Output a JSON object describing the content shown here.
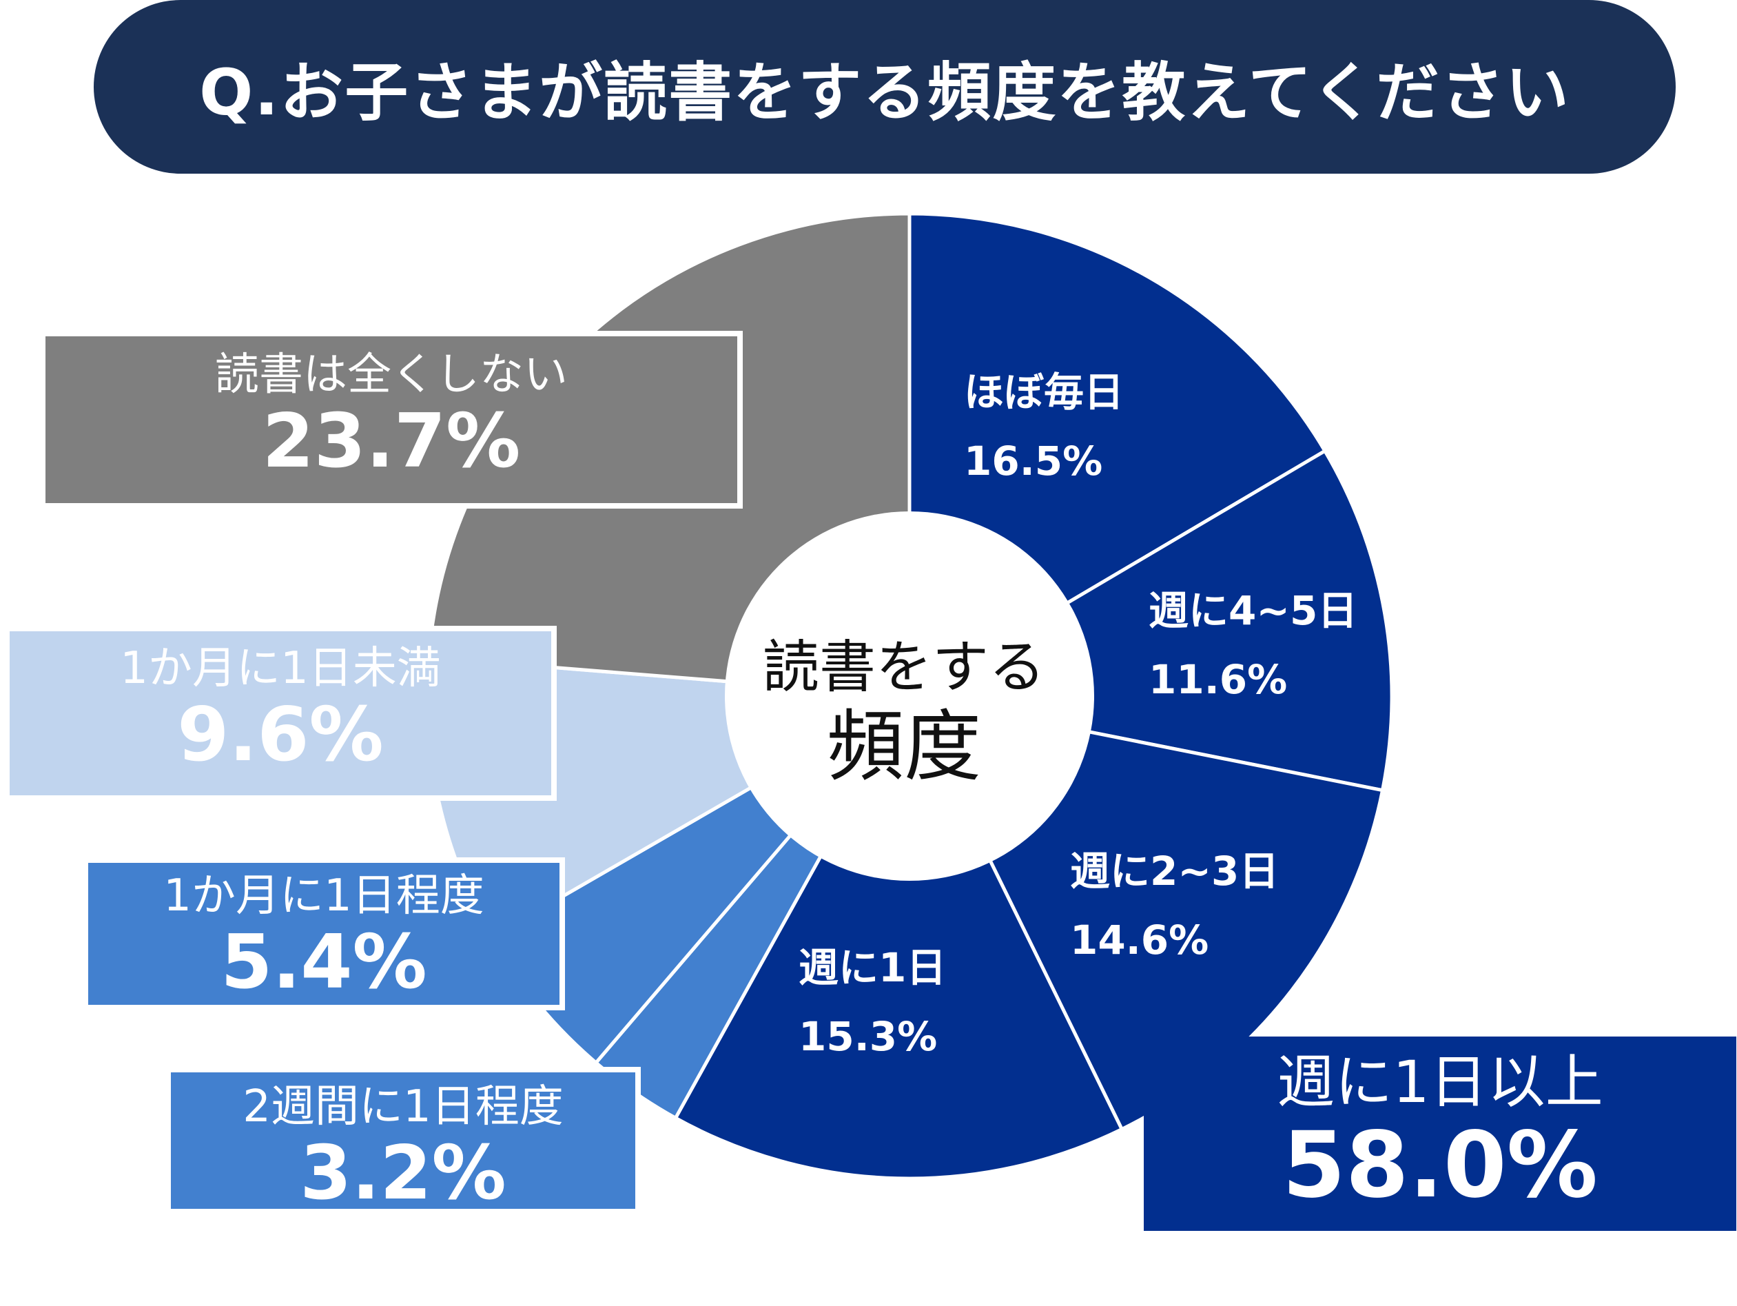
{
  "title": "Q.お子さまが読書をする頻度を教えてください",
  "center_label": {
    "line1": "読書をする",
    "line2": "頻度"
  },
  "summary": {
    "label": "週に1日以上",
    "value": "58.0%"
  },
  "colors": {
    "banner": "#1b3157",
    "weekly": "#022f8f",
    "monthly": "#4280cf",
    "rare": "#c0d4ee",
    "none": "#7f7f7f"
  },
  "chart_data": {
    "type": "pie",
    "variant": "donut",
    "start_angle": "12 o'clock",
    "direction": "clockwise",
    "slices": [
      {
        "label": "ほぼ毎日",
        "value": 16.5,
        "value_text": "16.5%",
        "color": "#022f8f",
        "label_position": "inside"
      },
      {
        "label": "週に4~5日",
        "value": 11.6,
        "value_text": "11.6%",
        "color": "#022f8f",
        "label_position": "inside"
      },
      {
        "label": "週に2~3日",
        "value": 14.6,
        "value_text": "14.6%",
        "color": "#022f8f",
        "label_position": "inside"
      },
      {
        "label": "週に1日",
        "value": 15.3,
        "value_text": "15.3%",
        "color": "#022f8f",
        "label_position": "inside"
      },
      {
        "label": "2週間に1日程度",
        "value": 3.2,
        "value_text": "3.2%",
        "color": "#4280cf",
        "label_position": "box"
      },
      {
        "label": "1か月に1日程度",
        "value": 5.4,
        "value_text": "5.4%",
        "color": "#4280cf",
        "label_position": "box"
      },
      {
        "label": "1か月に1日未満",
        "value": 9.6,
        "value_text": "9.6%",
        "color": "#c0d4ee",
        "label_position": "box"
      },
      {
        "label": "読書は全くしない",
        "value": 23.7,
        "value_text": "23.7%",
        "color": "#7f7f7f",
        "label_position": "box"
      }
    ]
  }
}
